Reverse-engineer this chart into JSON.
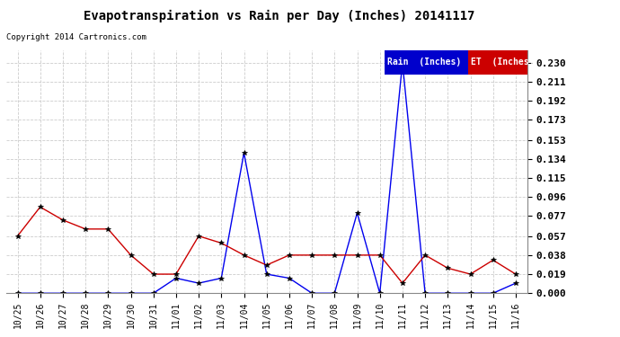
{
  "title": "Evapotranspiration vs Rain per Day (Inches) 20141117",
  "copyright": "Copyright 2014 Cartronics.com",
  "x_labels": [
    "10/25",
    "10/26",
    "10/27",
    "10/28",
    "10/29",
    "10/30",
    "10/31",
    "11/01",
    "11/02",
    "11/03",
    "11/04",
    "11/05",
    "11/06",
    "11/07",
    "11/08",
    "11/09",
    "11/10",
    "11/11",
    "11/12",
    "11/13",
    "11/14",
    "11/15",
    "11/16"
  ],
  "rain_values": [
    0.0,
    0.0,
    0.0,
    0.0,
    0.0,
    0.0,
    0.0,
    0.015,
    0.01,
    0.015,
    0.14,
    0.019,
    0.015,
    0.0,
    0.0,
    0.08,
    0.0,
    0.23,
    0.0,
    0.0,
    0.0,
    0.0,
    0.01
  ],
  "et_values": [
    0.057,
    0.086,
    0.073,
    0.064,
    0.064,
    0.038,
    0.019,
    0.019,
    0.057,
    0.05,
    0.038,
    0.028,
    0.038,
    0.038,
    0.038,
    0.038,
    0.038,
    0.01,
    0.038,
    0.025,
    0.019,
    0.033,
    0.019
  ],
  "y_ticks": [
    0.0,
    0.019,
    0.038,
    0.057,
    0.077,
    0.096,
    0.115,
    0.134,
    0.153,
    0.173,
    0.192,
    0.211,
    0.23
  ],
  "ylim": [
    0.0,
    0.242
  ],
  "rain_color": "#0000ee",
  "et_color": "#cc0000",
  "background_color": "#ffffff",
  "grid_color": "#cccccc",
  "legend_rain_bg": "#0000cc",
  "legend_et_bg": "#cc0000",
  "legend_rain_text": "Rain  (Inches)",
  "legend_et_text": "ET  (Inches)"
}
